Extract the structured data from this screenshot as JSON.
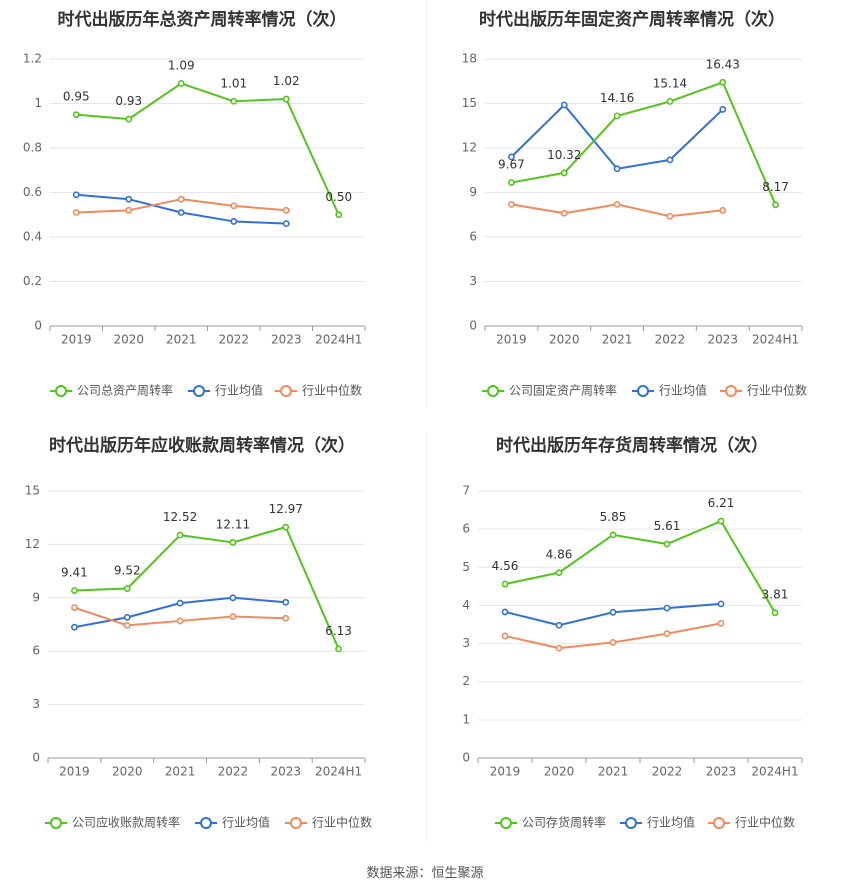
{
  "source": "数据来源：恒生聚源",
  "colors": {
    "company": "#52c41a",
    "industry_avg": "#3370d6",
    "industry_median": "#f08a5d",
    "grid": "#e6e6e6",
    "axis": "#999999"
  },
  "chart_data": [
    {
      "type": "line",
      "title": "时代出版历年总资产周转率情况（次）",
      "categories": [
        "2019",
        "2020",
        "2021",
        "2022",
        "2023",
        "2024H1"
      ],
      "ylim": [
        0,
        1.2
      ],
      "yticks": [
        "0",
        "0.2",
        "0.4",
        "0.6",
        "0.8",
        "1",
        "1.2"
      ],
      "grid": true,
      "legend_position": "bottom",
      "series": [
        {
          "name": "公司总资产周转率",
          "role": "company",
          "values": [
            0.95,
            0.93,
            1.09,
            1.01,
            1.02,
            0.5
          ],
          "labels": [
            "0.95",
            "0.93",
            "1.09",
            "1.01",
            "1.02",
            "0.50"
          ]
        },
        {
          "name": "行业均值",
          "role": "industry_avg",
          "values": [
            0.59,
            0.57,
            0.51,
            0.47,
            0.46,
            null
          ]
        },
        {
          "name": "行业中位数",
          "role": "industry_median",
          "values": [
            0.51,
            0.52,
            0.57,
            0.54,
            0.52,
            null
          ]
        }
      ]
    },
    {
      "type": "line",
      "title": "时代出版历年固定资产周转率情况（次）",
      "categories": [
        "2019",
        "2020",
        "2021",
        "2022",
        "2023",
        "2024H1"
      ],
      "ylim": [
        0,
        18
      ],
      "yticks": [
        "0",
        "3",
        "6",
        "9",
        "12",
        "15",
        "18"
      ],
      "grid": true,
      "legend_position": "bottom",
      "series": [
        {
          "name": "公司固定资产周转率",
          "role": "company",
          "values": [
            9.67,
            10.32,
            14.16,
            15.14,
            16.43,
            8.17
          ],
          "labels": [
            "9.67",
            "10.32",
            "14.16",
            "15.14",
            "16.43",
            "8.17"
          ]
        },
        {
          "name": "行业均值",
          "role": "industry_avg",
          "values": [
            11.4,
            14.9,
            10.6,
            11.2,
            14.6,
            null
          ]
        },
        {
          "name": "行业中位数",
          "role": "industry_median",
          "values": [
            8.2,
            7.6,
            8.2,
            7.4,
            7.8,
            null
          ]
        }
      ]
    },
    {
      "type": "line",
      "title": "时代出版历年应收账款周转率情况（次）",
      "categories": [
        "2019",
        "2020",
        "2021",
        "2022",
        "2023",
        "2024H1"
      ],
      "ylim": [
        0,
        15
      ],
      "yticks": [
        "0",
        "3",
        "6",
        "9",
        "12",
        "15"
      ],
      "grid": true,
      "legend_position": "bottom",
      "series": [
        {
          "name": "公司应收账款周转率",
          "role": "company",
          "values": [
            9.41,
            9.52,
            12.52,
            12.11,
            12.97,
            6.13
          ],
          "labels": [
            "9.41",
            "9.52",
            "12.52",
            "12.11",
            "12.97",
            "6.13"
          ]
        },
        {
          "name": "行业均值",
          "role": "industry_avg",
          "values": [
            7.35,
            7.9,
            8.7,
            9.0,
            8.75,
            null
          ]
        },
        {
          "name": "行业中位数",
          "role": "industry_median",
          "values": [
            8.45,
            7.45,
            7.7,
            7.95,
            7.85,
            null
          ]
        }
      ]
    },
    {
      "type": "line",
      "title": "时代出版历年存货周转率情况（次）",
      "categories": [
        "2019",
        "2020",
        "2021",
        "2022",
        "2023",
        "2024H1"
      ],
      "ylim": [
        0,
        7
      ],
      "yticks": [
        "0",
        "1",
        "2",
        "3",
        "4",
        "5",
        "6",
        "7"
      ],
      "grid": true,
      "legend_position": "bottom",
      "series": [
        {
          "name": "公司存货周转率",
          "role": "company",
          "values": [
            4.56,
            4.86,
            5.85,
            5.61,
            6.21,
            3.81
          ],
          "labels": [
            "4.56",
            "4.86",
            "5.85",
            "5.61",
            "6.21",
            "3.81"
          ]
        },
        {
          "name": "行业均值",
          "role": "industry_avg",
          "values": [
            3.83,
            3.48,
            3.82,
            3.93,
            4.04,
            null
          ]
        },
        {
          "name": "行业中位数",
          "role": "industry_median",
          "values": [
            3.2,
            2.88,
            3.03,
            3.26,
            3.53,
            null
          ]
        }
      ]
    }
  ]
}
